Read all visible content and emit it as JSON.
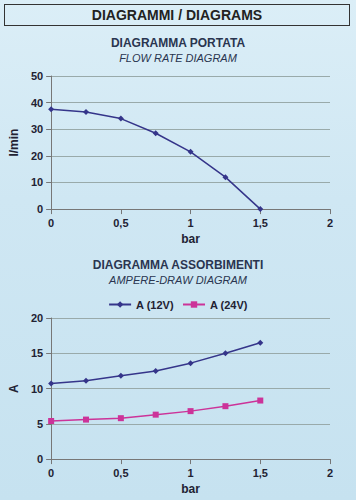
{
  "header": {
    "title": "DIAGRAMMI / DIAGRAMS"
  },
  "chart_data": [
    {
      "type": "line",
      "title": "DIAGRAMMA PORTATA",
      "subtitle": "FLOW RATE DIAGRAM",
      "x_label": "bar",
      "y_label": "l/min",
      "x": [
        0,
        0.25,
        0.5,
        0.75,
        1,
        1.25,
        1.5
      ],
      "values": [
        37.5,
        36.5,
        34,
        28.5,
        21.5,
        12,
        0
      ],
      "color": "#35358a",
      "marker": "diamond",
      "xlim": [
        0,
        2
      ],
      "xticks": [
        0,
        {
          "value": 0.5,
          "label": "0,5"
        },
        1,
        {
          "value": 1.5,
          "label": "1,5"
        },
        2
      ],
      "ylim": [
        0,
        50
      ],
      "yticks": [
        0,
        10,
        20,
        30,
        40,
        50
      ],
      "grid": true
    },
    {
      "type": "line",
      "title": "DIAGRAMMA ASSORBIMENTI",
      "subtitle": "AMPERE-DRAW DIAGRAM",
      "x_label": "bar",
      "y_label": "A",
      "x": [
        0,
        0.25,
        0.5,
        0.75,
        1,
        1.25,
        1.5
      ],
      "series": [
        {
          "name": "A (12V)",
          "color": "#35358a",
          "marker": "diamond",
          "values": [
            10.7,
            11.1,
            11.8,
            12.5,
            13.6,
            15,
            16.5
          ]
        },
        {
          "name": "A (24V)",
          "color": "#cc3399",
          "marker": "square",
          "values": [
            5.4,
            5.6,
            5.8,
            6.3,
            6.8,
            7.5,
            8.3
          ]
        }
      ],
      "xlim": [
        0,
        2
      ],
      "xticks": [
        0,
        {
          "value": 0.5,
          "label": "0,5"
        },
        1,
        {
          "value": 1.5,
          "label": "1,5"
        },
        2
      ],
      "ylim": [
        0,
        20
      ],
      "yticks": [
        0,
        5,
        10,
        15,
        20
      ],
      "grid": true,
      "legend": "top"
    }
  ]
}
